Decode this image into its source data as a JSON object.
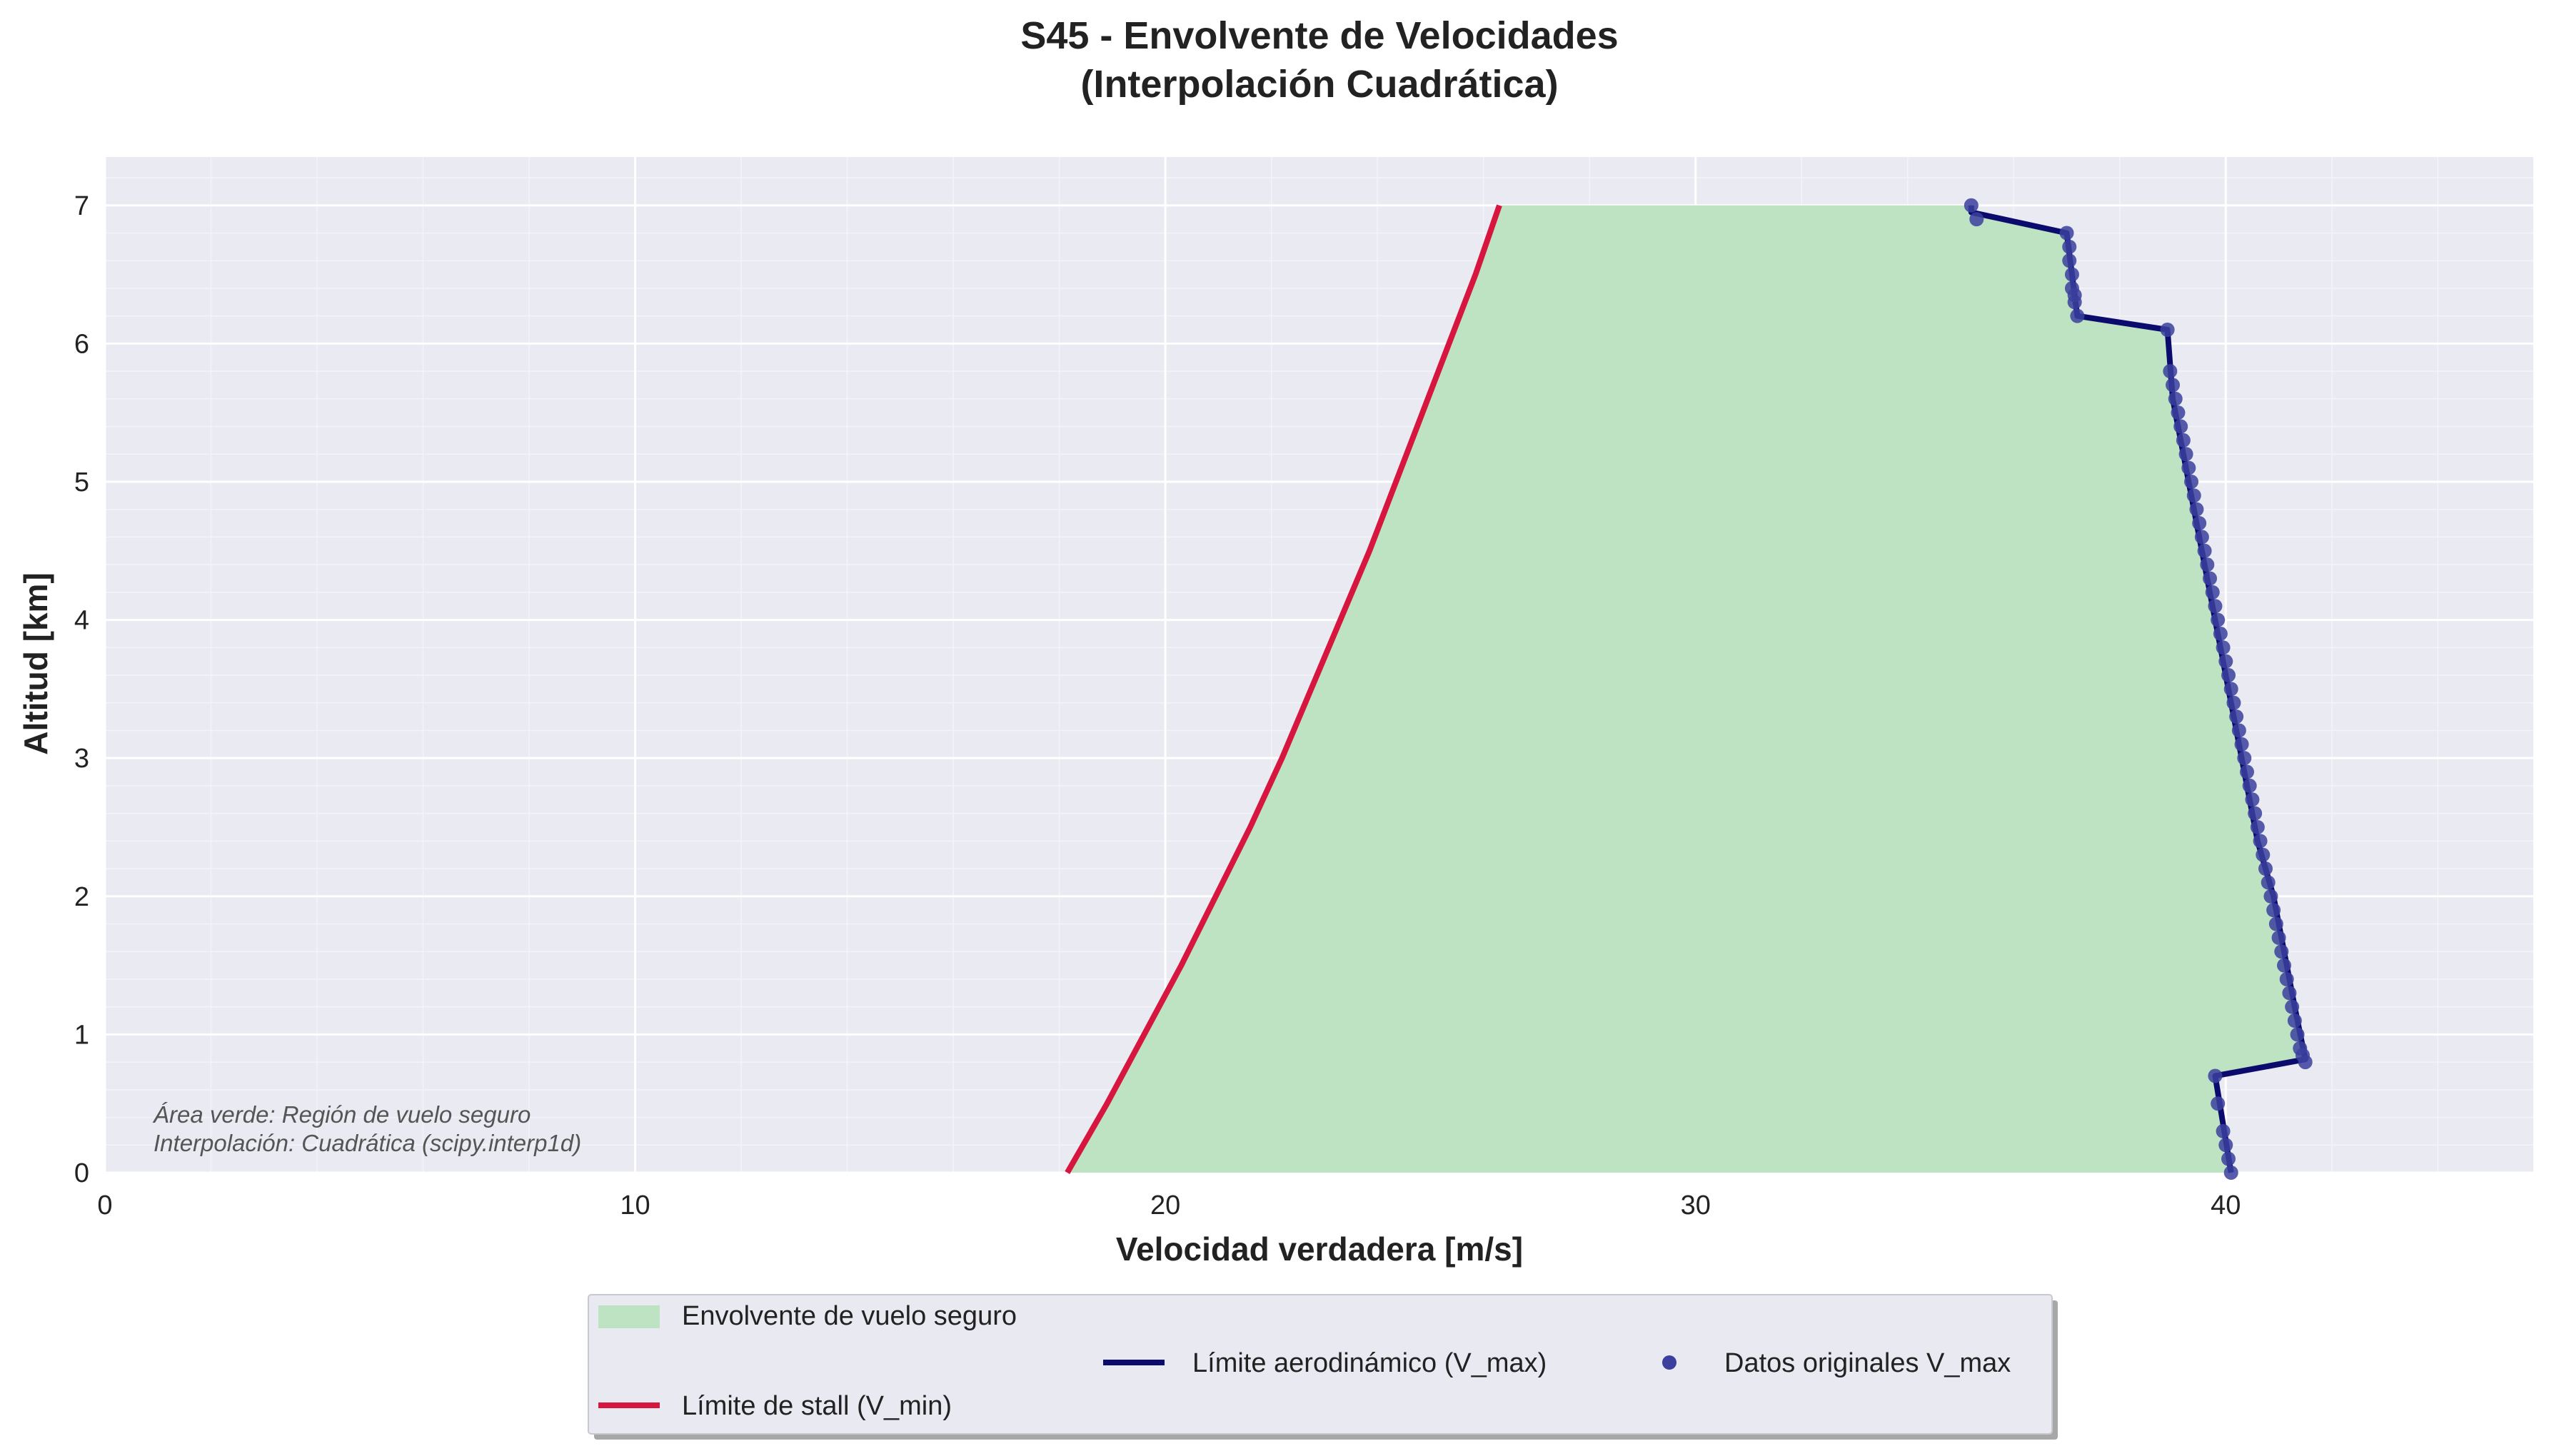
{
  "chart_data": {
    "type": "area",
    "title_line1": "S45 - Envolvente de Velocidades",
    "title_line2": "(Interpolación Cuadrática)",
    "xlabel": "Velocidad verdadera [m/s]",
    "ylabel": "Altitud [km]",
    "xlim": [
      0,
      45.8
    ],
    "ylim": [
      0,
      7.35
    ],
    "xticks": [
      0,
      10,
      20,
      30,
      40
    ],
    "yticks": [
      0,
      1,
      2,
      3,
      4,
      5,
      6,
      7
    ],
    "grid": true,
    "legend_position": "bottom-center",
    "colors": {
      "background": "#eaeaf2",
      "envelope_fill": "#bde3c2",
      "stall_line": "#d7163f",
      "vmax_line": "#0b0b6e",
      "vmax_points": "#3b3f9e"
    },
    "legend": [
      {
        "key": "fill",
        "label": "Envolvente de vuelo seguro"
      },
      {
        "key": "stall",
        "label": "Límite de stall (V_min)"
      },
      {
        "key": "vmax",
        "label": "Límite aerodinámico (V_max)"
      },
      {
        "key": "points",
        "label": "Datos originales V_max"
      }
    ],
    "annotation": [
      "Área verde: Región de vuelo seguro",
      "Interpolación: Cuadrática (scipy.interp1d)"
    ],
    "series": [
      {
        "name": "Límite de stall (V_min)",
        "kind": "line",
        "x": [
          18.15,
          18.9,
          19.6,
          20.3,
          20.95,
          21.6,
          22.2,
          22.75,
          23.3,
          23.85,
          24.35,
          24.85,
          25.35,
          25.85,
          26.3
        ],
        "y": [
          0,
          0.5,
          1.0,
          1.5,
          2.0,
          2.5,
          3.0,
          3.5,
          4.0,
          4.5,
          5.0,
          5.5,
          6.0,
          6.5,
          7.0
        ]
      },
      {
        "name": "Límite aerodinámico (V_max)",
        "kind": "line",
        "x": [
          40.1,
          39.8,
          41.5,
          41.3,
          41.1,
          40.9,
          40.6,
          40.4,
          40.2,
          40.0,
          39.8,
          39.6,
          39.4,
          39.2,
          39.0,
          38.9,
          37.2,
          37.1,
          37.0,
          35.2,
          35.2
        ],
        "y": [
          0,
          0.7,
          0.82,
          1.2,
          1.6,
          2.0,
          2.4,
          2.8,
          3.2,
          3.6,
          4.0,
          4.4,
          4.8,
          5.2,
          5.6,
          6.1,
          6.2,
          6.5,
          6.8,
          6.95,
          7.0
        ]
      },
      {
        "name": "Datos originales V_max",
        "kind": "scatter",
        "x": [
          40.1,
          40.05,
          40.0,
          39.95,
          39.85,
          39.8,
          41.5,
          41.45,
          41.4,
          41.35,
          41.3,
          41.25,
          41.2,
          41.15,
          41.1,
          41.05,
          41.0,
          40.95,
          40.9,
          40.85,
          40.8,
          40.75,
          40.7,
          40.65,
          40.6,
          40.55,
          40.5,
          40.45,
          40.4,
          40.35,
          40.3,
          40.25,
          40.2,
          40.15,
          40.1,
          40.05,
          40.0,
          39.95,
          39.9,
          39.85,
          39.8,
          39.75,
          39.7,
          39.65,
          39.6,
          39.55,
          39.5,
          39.45,
          39.4,
          39.35,
          39.3,
          39.25,
          39.2,
          39.15,
          39.1,
          39.05,
          39.0,
          38.95,
          38.9,
          37.2,
          37.15,
          37.15,
          37.1,
          37.1,
          37.05,
          37.05,
          37.0,
          35.3,
          35.2
        ],
        "y": [
          0.0,
          0.1,
          0.2,
          0.3,
          0.5,
          0.7,
          0.8,
          0.85,
          0.9,
          1.0,
          1.1,
          1.2,
          1.3,
          1.4,
          1.5,
          1.6,
          1.7,
          1.8,
          1.9,
          2.0,
          2.1,
          2.2,
          2.3,
          2.4,
          2.5,
          2.6,
          2.7,
          2.8,
          2.9,
          3.0,
          3.1,
          3.2,
          3.3,
          3.4,
          3.5,
          3.6,
          3.7,
          3.8,
          3.9,
          4.0,
          4.1,
          4.2,
          4.3,
          4.4,
          4.5,
          4.6,
          4.7,
          4.8,
          4.9,
          5.0,
          5.1,
          5.2,
          5.3,
          5.4,
          5.5,
          5.6,
          5.7,
          5.8,
          6.1,
          6.2,
          6.3,
          6.35,
          6.4,
          6.5,
          6.6,
          6.7,
          6.8,
          6.9,
          7.0
        ]
      }
    ]
  }
}
